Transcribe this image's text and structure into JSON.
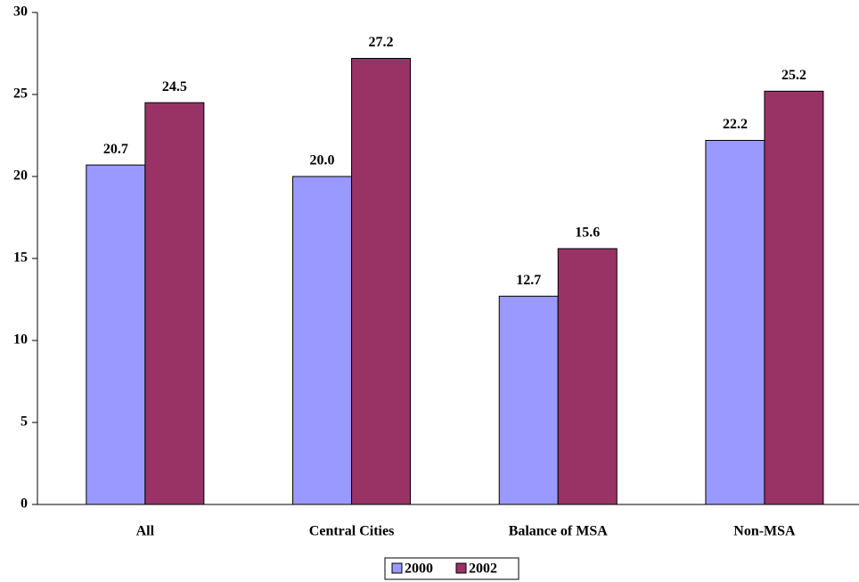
{
  "chart_data": {
    "type": "bar",
    "categories": [
      "All",
      "Central Cities",
      "Balance of MSA",
      "Non-MSA"
    ],
    "series": [
      {
        "name": "2000",
        "color": "#9999ff",
        "values": [
          20.7,
          20.0,
          12.7,
          22.2
        ],
        "value_labels": [
          "20.7",
          "20.0",
          "12.7",
          "22.2"
        ]
      },
      {
        "name": "2002",
        "color": "#993366",
        "values": [
          24.5,
          27.2,
          15.6,
          25.2
        ],
        "value_labels": [
          "24.5",
          "27.2",
          "15.6",
          "25.2"
        ]
      }
    ],
    "ylim": [
      0,
      30
    ],
    "yticks": [
      0,
      5,
      10,
      15,
      20,
      25,
      30
    ],
    "grid": false,
    "legend": "bottom"
  }
}
